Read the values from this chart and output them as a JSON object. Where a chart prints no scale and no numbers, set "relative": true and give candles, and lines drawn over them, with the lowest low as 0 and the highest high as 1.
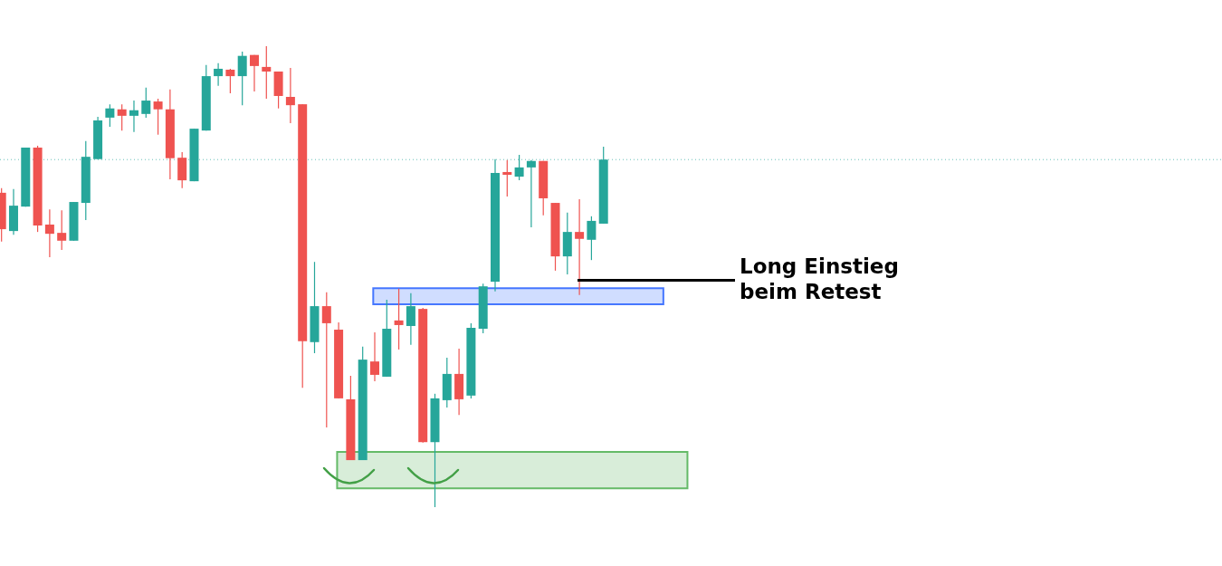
{
  "chart_data": {
    "type": "candlestick",
    "relative": true,
    "categories": [
      null,
      null,
      null,
      null,
      null,
      null,
      null,
      null,
      null,
      null,
      null,
      null,
      null,
      null,
      null,
      null,
      null,
      null,
      null,
      null,
      null,
      null,
      null,
      null,
      null,
      null,
      null,
      null,
      null,
      null,
      null,
      null,
      null,
      null,
      null,
      null,
      null,
      null,
      null,
      null,
      null,
      null,
      null,
      null,
      null,
      null,
      null,
      null,
      null,
      null,
      null
    ],
    "ohlc": [
      [
        0.682,
        0.692,
        0.576,
        0.603
      ],
      [
        0.599,
        0.69,
        0.591,
        0.654
      ],
      [
        0.652,
        0.78,
        0.652,
        0.78
      ],
      [
        0.78,
        0.784,
        0.597,
        0.611
      ],
      [
        0.613,
        0.646,
        0.542,
        0.593
      ],
      [
        0.595,
        0.644,
        0.558,
        0.578
      ],
      [
        0.578,
        0.662,
        0.578,
        0.662
      ],
      [
        0.66,
        0.794,
        0.623,
        0.76
      ],
      [
        0.755,
        0.847,
        0.755,
        0.839
      ],
      [
        0.845,
        0.874,
        0.825,
        0.865
      ],
      [
        0.863,
        0.874,
        0.817,
        0.849
      ],
      [
        0.849,
        0.882,
        0.814,
        0.861
      ],
      [
        0.853,
        0.91,
        0.845,
        0.882
      ],
      [
        0.88,
        0.886,
        0.808,
        0.863
      ],
      [
        0.863,
        0.906,
        0.711,
        0.757
      ],
      [
        0.758,
        0.77,
        0.692,
        0.709
      ],
      [
        0.707,
        0.821,
        0.707,
        0.821
      ],
      [
        0.817,
        0.959,
        0.817,
        0.935
      ],
      [
        0.935,
        0.963,
        0.914,
        0.951
      ],
      [
        0.949,
        0.951,
        0.898,
        0.935
      ],
      [
        0.935,
        0.988,
        0.872,
        0.979
      ],
      [
        0.981,
        0.981,
        0.902,
        0.957
      ],
      [
        0.955,
        1.0,
        0.886,
        0.945
      ],
      [
        0.945,
        0.945,
        0.865,
        0.892
      ],
      [
        0.89,
        0.953,
        0.833,
        0.872
      ],
      [
        0.874,
        0.874,
        0.259,
        0.36
      ],
      [
        0.358,
        0.532,
        0.334,
        0.436
      ],
      [
        0.436,
        0.466,
        0.173,
        0.399
      ],
      [
        0.385,
        0.401,
        0.236,
        0.236
      ],
      [
        0.234,
        0.285,
        0.102,
        0.102
      ],
      [
        0.102,
        0.348,
        0.102,
        0.32
      ],
      [
        0.316,
        0.379,
        0.273,
        0.287
      ],
      [
        0.283,
        0.45,
        0.283,
        0.387
      ],
      [
        0.405,
        0.474,
        0.342,
        0.395
      ],
      [
        0.393,
        0.464,
        0.352,
        0.436
      ],
      [
        0.43,
        0.432,
        0.14,
        0.141
      ],
      [
        0.141,
        0.246,
        0.0,
        0.236
      ],
      [
        0.232,
        0.324,
        0.216,
        0.289
      ],
      [
        0.289,
        0.344,
        0.2,
        0.234
      ],
      [
        0.242,
        0.399,
        0.236,
        0.389
      ],
      [
        0.387,
        0.485,
        0.377,
        0.479
      ],
      [
        0.489,
        0.755,
        0.468,
        0.725
      ],
      [
        0.727,
        0.753,
        0.674,
        0.721
      ],
      [
        0.717,
        0.764,
        0.709,
        0.737
      ],
      [
        0.737,
        0.753,
        0.607,
        0.751
      ],
      [
        0.751,
        0.751,
        0.633,
        0.67
      ],
      [
        0.66,
        0.66,
        0.513,
        0.544
      ],
      [
        0.544,
        0.639,
        0.505,
        0.597
      ],
      [
        0.597,
        0.668,
        0.46,
        0.582
      ],
      [
        0.58,
        0.631,
        0.536,
        0.621
      ],
      [
        0.615,
        0.782,
        0.615,
        0.754
      ]
    ],
    "colors": [
      "#ef5350",
      "#26a69a",
      "#26a69a",
      "#ef5350",
      "#ef5350",
      "#ef5350",
      "#26a69a",
      "#26a69a",
      "#26a69a",
      "#26a69a",
      "#ef5350",
      "#26a69a",
      "#26a69a",
      "#ef5350",
      "#ef5350",
      "#ef5350",
      "#26a69a",
      "#26a69a",
      "#26a69a",
      "#ef5350",
      "#26a69a",
      "#ef5350",
      "#ef5350",
      "#ef5350",
      "#ef5350",
      "#ef5350",
      "#26a69a",
      "#ef5350",
      "#ef5350",
      "#ef5350",
      "#26a69a",
      "#ef5350",
      "#26a69a",
      "#ef5350",
      "#26a69a",
      "#ef5350",
      "#26a69a",
      "#26a69a",
      "#ef5350",
      "#26a69a",
      "#26a69a",
      "#26a69a",
      "#ef5350",
      "#26a69a",
      "#26a69a",
      "#ef5350",
      "#ef5350",
      "#26a69a",
      "#ef5350",
      "#26a69a",
      "#26a69a"
    ],
    "ref_lines": [
      {
        "axis": "y",
        "value": 0.754,
        "color": "#26a69a",
        "line_style": "dotted"
      }
    ],
    "bands": [
      {
        "axis": "y",
        "from": 0.44,
        "to": 0.475,
        "color": "#2962ff"
      },
      {
        "axis": "y",
        "from": 0.041,
        "to": 0.12,
        "color": "#4caf50"
      }
    ],
    "annotations": [
      "Long Einstieg beim Retest"
    ]
  }
}
